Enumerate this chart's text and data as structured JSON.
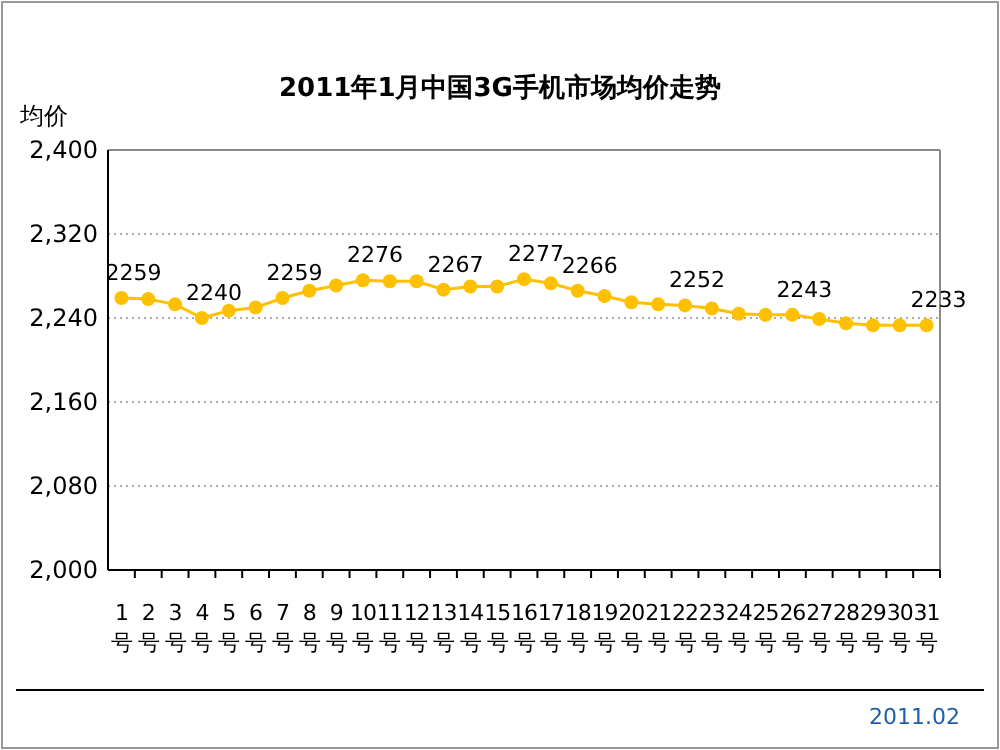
{
  "chart_data": {
    "type": "line",
    "title": "2011年1月中国3G手机市场均价走势",
    "ylabel": "均价",
    "annotations": [
      "2011.02"
    ],
    "categories": [
      "1号",
      "2号",
      "3号",
      "4号",
      "5号",
      "6号",
      "7号",
      "8号",
      "9号",
      "10号",
      "11号",
      "12号",
      "13号",
      "14号",
      "15号",
      "16号",
      "17号",
      "18号",
      "19号",
      "20号",
      "21号",
      "22号",
      "23号",
      "24号",
      "25号",
      "26号",
      "27号",
      "28号",
      "29号",
      "30号",
      "31号"
    ],
    "series": [
      {
        "color": "#ffc000",
        "values": [
          2259,
          2258,
          2253,
          2240,
          2247,
          2250,
          2259,
          2266,
          2271,
          2276,
          2275,
          2275,
          2267,
          2270,
          2270,
          2277,
          2273,
          2266,
          2261,
          2255,
          2253,
          2252,
          2249,
          2244,
          2243,
          2243,
          2239,
          2235,
          2233,
          2233,
          2233
        ],
        "value_labels": [
          "2259",
          null,
          null,
          "2240",
          null,
          null,
          "2259",
          null,
          null,
          "2276",
          null,
          null,
          "2267",
          null,
          null,
          "2277",
          null,
          "2266",
          null,
          null,
          null,
          "2252",
          null,
          null,
          null,
          "2243",
          null,
          null,
          null,
          null,
          "2233"
        ]
      }
    ],
    "ylim": [
      2000,
      2400
    ],
    "yticks": [
      {
        "value": 2000,
        "label": "2,000"
      },
      {
        "value": 2080,
        "label": "2,080"
      },
      {
        "value": 2160,
        "label": "2,160"
      },
      {
        "value": 2240,
        "label": "2,240"
      },
      {
        "value": 2320,
        "label": "2,320"
      },
      {
        "value": 2400,
        "label": "2,400"
      }
    ],
    "grid": "y",
    "marker": "circle",
    "line_style": "solid"
  }
}
